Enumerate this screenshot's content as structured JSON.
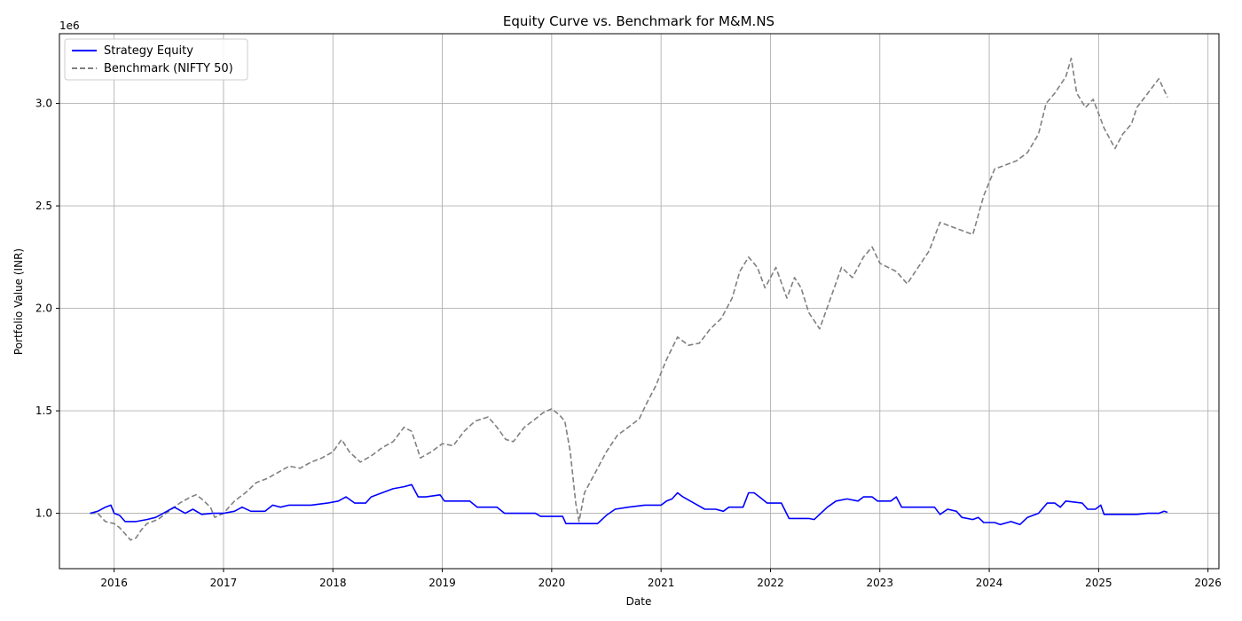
{
  "chart_data": {
    "type": "line",
    "title": "Equity Curve vs. Benchmark for M&M.NS",
    "xlabel": "Date",
    "ylabel": "Portfolio Value (INR)",
    "y_offset_label": "1e6",
    "xlim": [
      2015.5,
      2026.1
    ],
    "ylim": [
      0.73,
      3.34
    ],
    "x_ticks": [
      2016,
      2017,
      2018,
      2019,
      2020,
      2021,
      2022,
      2023,
      2024,
      2025,
      2026
    ],
    "x_tick_labels": [
      "2016",
      "2017",
      "2018",
      "2019",
      "2020",
      "2021",
      "2022",
      "2023",
      "2024",
      "2025",
      "2026"
    ],
    "y_ticks": [
      1.0,
      1.5,
      2.0,
      2.5,
      3.0
    ],
    "y_tick_labels": [
      "1.0",
      "1.5",
      "2.0",
      "2.5",
      "3.0"
    ],
    "grid": true,
    "legend_position": "top-left",
    "series": [
      {
        "name": "Strategy Equity",
        "color": "#0000ff",
        "style": "solid",
        "points": [
          [
            2015.78,
            1.0
          ],
          [
            2015.85,
            1.01
          ],
          [
            2015.92,
            1.03
          ],
          [
            2015.97,
            1.04
          ],
          [
            2016.0,
            1.0
          ],
          [
            2016.05,
            0.99
          ],
          [
            2016.1,
            0.96
          ],
          [
            2016.2,
            0.96
          ],
          [
            2016.3,
            0.97
          ],
          [
            2016.38,
            0.98
          ],
          [
            2016.45,
            1.0
          ],
          [
            2016.55,
            1.03
          ],
          [
            2016.65,
            1.0
          ],
          [
            2016.72,
            1.02
          ],
          [
            2016.8,
            0.995
          ],
          [
            2016.9,
            1.0
          ],
          [
            2017.0,
            1.0
          ],
          [
            2017.1,
            1.01
          ],
          [
            2017.17,
            1.03
          ],
          [
            2017.25,
            1.01
          ],
          [
            2017.38,
            1.01
          ],
          [
            2017.45,
            1.04
          ],
          [
            2017.52,
            1.03
          ],
          [
            2017.6,
            1.04
          ],
          [
            2017.8,
            1.04
          ],
          [
            2017.95,
            1.05
          ],
          [
            2018.05,
            1.06
          ],
          [
            2018.12,
            1.08
          ],
          [
            2018.2,
            1.05
          ],
          [
            2018.3,
            1.05
          ],
          [
            2018.35,
            1.08
          ],
          [
            2018.45,
            1.1
          ],
          [
            2018.55,
            1.12
          ],
          [
            2018.65,
            1.13
          ],
          [
            2018.72,
            1.14
          ],
          [
            2018.78,
            1.08
          ],
          [
            2018.85,
            1.08
          ],
          [
            2018.98,
            1.09
          ],
          [
            2019.02,
            1.06
          ],
          [
            2019.25,
            1.06
          ],
          [
            2019.32,
            1.03
          ],
          [
            2019.5,
            1.03
          ],
          [
            2019.57,
            1.0
          ],
          [
            2019.85,
            1.0
          ],
          [
            2019.9,
            0.985
          ],
          [
            2020.1,
            0.985
          ],
          [
            2020.13,
            0.95
          ],
          [
            2020.42,
            0.95
          ],
          [
            2020.5,
            0.99
          ],
          [
            2020.58,
            1.02
          ],
          [
            2020.7,
            1.03
          ],
          [
            2020.85,
            1.04
          ],
          [
            2021.0,
            1.04
          ],
          [
            2021.05,
            1.06
          ],
          [
            2021.1,
            1.07
          ],
          [
            2021.15,
            1.1
          ],
          [
            2021.2,
            1.08
          ],
          [
            2021.3,
            1.05
          ],
          [
            2021.4,
            1.02
          ],
          [
            2021.5,
            1.02
          ],
          [
            2021.57,
            1.01
          ],
          [
            2021.62,
            1.03
          ],
          [
            2021.75,
            1.03
          ],
          [
            2021.8,
            1.1
          ],
          [
            2021.85,
            1.1
          ],
          [
            2021.9,
            1.08
          ],
          [
            2021.97,
            1.05
          ],
          [
            2022.1,
            1.05
          ],
          [
            2022.17,
            0.975
          ],
          [
            2022.35,
            0.975
          ],
          [
            2022.4,
            0.97
          ],
          [
            2022.45,
            0.995
          ],
          [
            2022.52,
            1.03
          ],
          [
            2022.6,
            1.06
          ],
          [
            2022.7,
            1.07
          ],
          [
            2022.8,
            1.06
          ],
          [
            2022.85,
            1.08
          ],
          [
            2022.93,
            1.08
          ],
          [
            2022.98,
            1.06
          ],
          [
            2023.1,
            1.06
          ],
          [
            2023.15,
            1.08
          ],
          [
            2023.2,
            1.03
          ],
          [
            2023.5,
            1.03
          ],
          [
            2023.55,
            0.995
          ],
          [
            2023.62,
            1.02
          ],
          [
            2023.7,
            1.01
          ],
          [
            2023.75,
            0.98
          ],
          [
            2023.85,
            0.97
          ],
          [
            2023.9,
            0.98
          ],
          [
            2023.95,
            0.955
          ],
          [
            2024.05,
            0.955
          ],
          [
            2024.1,
            0.945
          ],
          [
            2024.2,
            0.96
          ],
          [
            2024.28,
            0.945
          ],
          [
            2024.35,
            0.98
          ],
          [
            2024.45,
            1.0
          ],
          [
            2024.53,
            1.05
          ],
          [
            2024.6,
            1.05
          ],
          [
            2024.65,
            1.03
          ],
          [
            2024.7,
            1.06
          ],
          [
            2024.85,
            1.05
          ],
          [
            2024.9,
            1.02
          ],
          [
            2024.97,
            1.02
          ],
          [
            2025.02,
            1.04
          ],
          [
            2025.05,
            0.995
          ],
          [
            2025.35,
            0.995
          ],
          [
            2025.45,
            1.0
          ],
          [
            2025.55,
            1.0
          ],
          [
            2025.6,
            1.01
          ],
          [
            2025.63,
            1.005
          ]
        ]
      },
      {
        "name": "Benchmark (NIFTY 50)",
        "color": "#808080",
        "style": "dashed",
        "points": [
          [
            2015.78,
            1.0
          ],
          [
            2015.85,
            1.0
          ],
          [
            2015.92,
            0.96
          ],
          [
            2016.0,
            0.95
          ],
          [
            2016.05,
            0.93
          ],
          [
            2016.1,
            0.9
          ],
          [
            2016.15,
            0.87
          ],
          [
            2016.2,
            0.88
          ],
          [
            2016.25,
            0.92
          ],
          [
            2016.3,
            0.95
          ],
          [
            2016.4,
            0.97
          ],
          [
            2016.5,
            1.01
          ],
          [
            2016.6,
            1.05
          ],
          [
            2016.7,
            1.08
          ],
          [
            2016.75,
            1.09
          ],
          [
            2016.8,
            1.07
          ],
          [
            2016.88,
            1.03
          ],
          [
            2016.92,
            0.98
          ],
          [
            2017.0,
            1.0
          ],
          [
            2017.1,
            1.06
          ],
          [
            2017.2,
            1.1
          ],
          [
            2017.3,
            1.15
          ],
          [
            2017.4,
            1.17
          ],
          [
            2017.5,
            1.2
          ],
          [
            2017.6,
            1.23
          ],
          [
            2017.7,
            1.22
          ],
          [
            2017.8,
            1.25
          ],
          [
            2017.9,
            1.27
          ],
          [
            2018.0,
            1.3
          ],
          [
            2018.08,
            1.36
          ],
          [
            2018.15,
            1.3
          ],
          [
            2018.25,
            1.25
          ],
          [
            2018.35,
            1.28
          ],
          [
            2018.45,
            1.32
          ],
          [
            2018.55,
            1.35
          ],
          [
            2018.65,
            1.42
          ],
          [
            2018.72,
            1.4
          ],
          [
            2018.8,
            1.27
          ],
          [
            2018.9,
            1.3
          ],
          [
            2019.0,
            1.34
          ],
          [
            2019.1,
            1.33
          ],
          [
            2019.2,
            1.4
          ],
          [
            2019.3,
            1.45
          ],
          [
            2019.42,
            1.47
          ],
          [
            2019.5,
            1.42
          ],
          [
            2019.58,
            1.36
          ],
          [
            2019.65,
            1.35
          ],
          [
            2019.75,
            1.42
          ],
          [
            2019.85,
            1.46
          ],
          [
            2019.92,
            1.49
          ],
          [
            2020.0,
            1.51
          ],
          [
            2020.07,
            1.48
          ],
          [
            2020.12,
            1.45
          ],
          [
            2020.17,
            1.3
          ],
          [
            2020.22,
            1.05
          ],
          [
            2020.25,
            0.96
          ],
          [
            2020.3,
            1.1
          ],
          [
            2020.4,
            1.2
          ],
          [
            2020.5,
            1.3
          ],
          [
            2020.6,
            1.38
          ],
          [
            2020.7,
            1.42
          ],
          [
            2020.8,
            1.46
          ],
          [
            2020.88,
            1.55
          ],
          [
            2020.95,
            1.62
          ],
          [
            2021.05,
            1.75
          ],
          [
            2021.15,
            1.86
          ],
          [
            2021.25,
            1.82
          ],
          [
            2021.35,
            1.83
          ],
          [
            2021.45,
            1.9
          ],
          [
            2021.55,
            1.95
          ],
          [
            2021.65,
            2.05
          ],
          [
            2021.72,
            2.18
          ],
          [
            2021.8,
            2.25
          ],
          [
            2021.88,
            2.2
          ],
          [
            2021.95,
            2.1
          ],
          [
            2022.05,
            2.2
          ],
          [
            2022.15,
            2.05
          ],
          [
            2022.22,
            2.15
          ],
          [
            2022.28,
            2.1
          ],
          [
            2022.35,
            1.98
          ],
          [
            2022.45,
            1.9
          ],
          [
            2022.55,
            2.05
          ],
          [
            2022.65,
            2.2
          ],
          [
            2022.75,
            2.15
          ],
          [
            2022.85,
            2.25
          ],
          [
            2022.93,
            2.3
          ],
          [
            2023.0,
            2.22
          ],
          [
            2023.15,
            2.18
          ],
          [
            2023.25,
            2.12
          ],
          [
            2023.35,
            2.2
          ],
          [
            2023.45,
            2.28
          ],
          [
            2023.55,
            2.42
          ],
          [
            2023.65,
            2.4
          ],
          [
            2023.75,
            2.38
          ],
          [
            2023.85,
            2.36
          ],
          [
            2023.95,
            2.55
          ],
          [
            2024.05,
            2.68
          ],
          [
            2024.15,
            2.7
          ],
          [
            2024.25,
            2.72
          ],
          [
            2024.35,
            2.76
          ],
          [
            2024.45,
            2.85
          ],
          [
            2024.52,
            3.0
          ],
          [
            2024.6,
            3.05
          ],
          [
            2024.7,
            3.13
          ],
          [
            2024.75,
            3.22
          ],
          [
            2024.8,
            3.05
          ],
          [
            2024.88,
            2.98
          ],
          [
            2024.95,
            3.02
          ],
          [
            2025.05,
            2.88
          ],
          [
            2025.15,
            2.78
          ],
          [
            2025.22,
            2.85
          ],
          [
            2025.3,
            2.9
          ],
          [
            2025.35,
            2.98
          ],
          [
            2025.45,
            3.05
          ],
          [
            2025.55,
            3.12
          ],
          [
            2025.63,
            3.03
          ]
        ]
      }
    ]
  }
}
